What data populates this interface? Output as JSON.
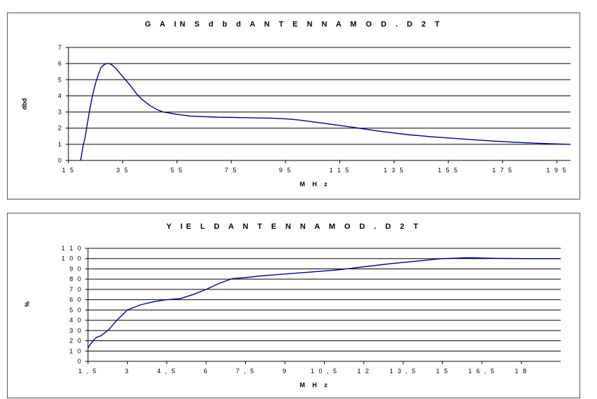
{
  "chart_data": [
    {
      "type": "line",
      "title": "G A IN S  d b d   A N T E N N A  M O D . D 2 T",
      "xlabel": "M H z",
      "ylabel": "dbd",
      "xlim": [
        15,
        200
      ],
      "ylim": [
        0,
        7
      ],
      "x_tick_labels": [
        "1 5",
        "3 5",
        "5 5",
        "7 5",
        "9 5",
        "1 1 5",
        "1 3 5",
        "1 5 5",
        "1 7 5",
        "1 9 5"
      ],
      "x_tick_values": [
        15,
        35,
        55,
        75,
        95,
        115,
        135,
        155,
        175,
        195
      ],
      "y_tick_labels": [
        "0",
        "1",
        "2",
        "3",
        "4",
        "5",
        "6",
        "7"
      ],
      "y_tick_values": [
        0,
        1,
        2,
        3,
        4,
        5,
        6,
        7
      ],
      "grid": "horizontal",
      "color": "#000080",
      "series": [
        {
          "x": [
            19.5,
            20,
            20.5,
            21,
            21.5,
            22,
            22.5,
            23,
            23.5,
            24,
            25,
            26,
            27,
            28,
            29,
            30,
            31,
            32,
            33,
            35,
            38,
            40,
            42,
            45,
            48,
            50,
            55,
            60,
            70,
            80,
            90,
            95,
            100,
            110,
            120,
            130,
            140,
            150,
            160,
            170,
            180,
            190,
            200
          ],
          "y": [
            0,
            0.5,
            1.0,
            1.3,
            1.8,
            2.3,
            2.8,
            3.3,
            3.7,
            4.1,
            4.8,
            5.3,
            5.75,
            5.92,
            6.0,
            6.0,
            5.92,
            5.78,
            5.6,
            5.2,
            4.6,
            4.15,
            3.8,
            3.4,
            3.12,
            3.0,
            2.85,
            2.75,
            2.68,
            2.65,
            2.62,
            2.58,
            2.5,
            2.28,
            2.05,
            1.8,
            1.6,
            1.45,
            1.33,
            1.22,
            1.12,
            1.05,
            1.0
          ]
        }
      ]
    },
    {
      "type": "line",
      "title": "Y IE L D   A N T E N N A  M O D . D 2 T",
      "xlabel": "M H z",
      "ylabel": "%",
      "xlim": [
        1.5,
        19.5
      ],
      "ylim": [
        0,
        110
      ],
      "x_tick_labels": [
        "1 , 5",
        "3",
        "4 , 5",
        "6",
        "7 , 5",
        "9",
        "1 0 , 5",
        "1 2",
        "1 3 , 5",
        "1 5",
        "1 6 , 5",
        "1 8"
      ],
      "x_tick_values": [
        1.5,
        3,
        4.5,
        6,
        7.5,
        9,
        10.5,
        12,
        13.5,
        15,
        16.5,
        18
      ],
      "y_tick_labels": [
        "0",
        "1 0",
        "2 0",
        "3 0",
        "4 0",
        "5 0",
        "6 0",
        "7 0",
        "8 0",
        "9 0",
        "1 0 0",
        "1 1 0"
      ],
      "y_tick_values": [
        0,
        10,
        20,
        30,
        40,
        50,
        60,
        70,
        80,
        90,
        100,
        110
      ],
      "grid": "horizontal",
      "color": "#000080",
      "series": [
        {
          "x": [
            1.5,
            1.6,
            1.8,
            2.0,
            2.3,
            2.6,
            3.0,
            3.5,
            4.0,
            4.5,
            5.0,
            5.5,
            6.0,
            6.5,
            7.0,
            7.5,
            8.0,
            9.0,
            10.0,
            11.0,
            12.0,
            13.0,
            14.0,
            15.0,
            16.0,
            17.0,
            18.0,
            19.5
          ],
          "y": [
            13,
            17,
            23,
            25,
            31,
            40,
            50,
            55,
            58,
            60,
            61,
            65,
            70,
            76,
            80.5,
            81.5,
            83,
            85,
            87,
            89,
            92,
            95,
            97.5,
            100,
            100.8,
            100.3,
            100,
            100
          ]
        }
      ]
    }
  ]
}
